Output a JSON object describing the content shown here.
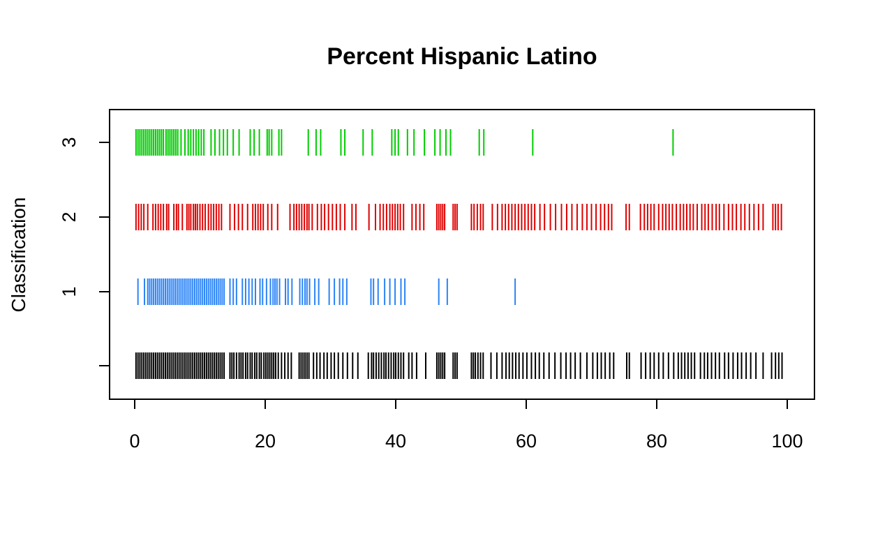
{
  "chart_data": {
    "type": "strip",
    "title": "Percent Hispanic Latino",
    "xlabel": "",
    "ylabel": "Classification",
    "xlim": [
      0,
      100
    ],
    "x_ticks": [
      "0",
      "20",
      "40",
      "60",
      "80",
      "100"
    ],
    "x_tick_values": [
      0,
      20,
      40,
      60,
      80,
      100
    ],
    "y_ticks": [
      "",
      "1",
      "2",
      "3"
    ],
    "grid": false,
    "legend": "none",
    "series": [
      {
        "row": "all",
        "color": "#000000",
        "x": [
          0.2,
          0.5,
          0.8,
          1.1,
          1.4,
          1.7,
          2.0,
          2.3,
          2.6,
          2.9,
          3.2,
          3.5,
          3.8,
          4.1,
          4.4,
          4.7,
          5.0,
          5.3,
          5.6,
          5.9,
          6.2,
          6.5,
          6.8,
          7.1,
          7.4,
          7.7,
          8.0,
          8.3,
          8.6,
          8.9,
          9.2,
          9.5,
          9.8,
          10.1,
          10.4,
          10.7,
          11.0,
          11.3,
          11.6,
          11.9,
          12.2,
          12.5,
          12.8,
          13.1,
          13.4,
          13.7,
          14.6,
          14.9,
          15.2,
          15.6,
          16.0,
          16.3,
          16.6,
          17.0,
          17.3,
          17.7,
          18.0,
          18.4,
          18.7,
          19.1,
          19.4,
          19.8,
          20.1,
          20.4,
          20.7,
          21.0,
          21.3,
          21.6,
          22.0,
          22.5,
          23.0,
          23.5,
          24.0,
          25.2,
          25.5,
          25.8,
          26.1,
          26.4,
          26.7,
          27.4,
          27.9,
          28.4,
          29.0,
          29.5,
          30.1,
          30.6,
          31.2,
          31.9,
          32.6,
          33.4,
          34.2,
          35.8,
          36.3,
          36.6,
          37.0,
          37.4,
          37.8,
          38.2,
          38.5,
          38.9,
          39.3,
          39.7,
          40.0,
          40.4,
          40.8,
          41.2,
          42.0,
          42.5,
          43.2,
          44.6,
          46.3,
          46.6,
          46.9,
          47.2,
          47.5,
          48.8,
          49.1,
          49.4,
          51.6,
          51.9,
          52.2,
          52.6,
          53.0,
          53.4,
          54.6,
          55.5,
          56.3,
          56.9,
          57.4,
          57.9,
          58.4,
          58.9,
          59.5,
          60.1,
          60.8,
          61.4,
          62.0,
          62.7,
          63.5,
          64.4,
          65.3,
          66.1,
          66.8,
          67.5,
          68.3,
          69.3,
          70.2,
          70.9,
          71.5,
          72.1,
          72.8,
          73.4,
          75.4,
          75.8,
          77.6,
          78.3,
          79.0,
          79.6,
          80.3,
          81.0,
          81.8,
          82.6,
          83.3,
          83.8,
          84.3,
          84.8,
          85.3,
          85.8,
          86.7,
          87.3,
          87.8,
          88.4,
          89.0,
          89.6,
          90.4,
          91.0,
          91.7,
          92.4,
          93.0,
          93.7,
          94.4,
          95.2,
          96.3,
          97.6,
          98.2,
          98.7,
          99.2
        ],
        "y": 0
      },
      {
        "row": "1",
        "color": "#2b83f6",
        "x": [
          0.5,
          1.5,
          2.0,
          2.3,
          2.6,
          2.9,
          3.2,
          3.5,
          3.8,
          4.1,
          4.4,
          4.7,
          5.0,
          5.3,
          5.6,
          5.9,
          6.2,
          6.5,
          6.8,
          7.1,
          7.4,
          7.7,
          8.0,
          8.3,
          8.6,
          8.9,
          9.2,
          9.5,
          9.8,
          10.1,
          10.4,
          10.7,
          11.0,
          11.3,
          11.6,
          11.9,
          12.2,
          12.5,
          12.8,
          13.1,
          13.4,
          13.7,
          14.6,
          15.1,
          15.6,
          16.5,
          17.0,
          17.5,
          18.0,
          18.5,
          19.2,
          19.6,
          20.2,
          20.8,
          21.2,
          21.5,
          21.8,
          22.2,
          23.1,
          23.5,
          24.1,
          25.3,
          25.7,
          26.1,
          26.4,
          26.8,
          27.6,
          28.2,
          29.8,
          30.6,
          31.4,
          31.9,
          32.5,
          36.2,
          36.6,
          37.3,
          38.3,
          39.1,
          39.9,
          40.8,
          41.4,
          46.6,
          47.9,
          58.3
        ],
        "y": 1
      },
      {
        "row": "2",
        "color": "#df0000",
        "x": [
          0.2,
          0.6,
          1.0,
          1.4,
          2.0,
          2.8,
          3.2,
          3.6,
          4.0,
          4.4,
          4.9,
          5.2,
          6.0,
          6.4,
          6.7,
          7.3,
          8.0,
          8.3,
          8.6,
          9.0,
          9.3,
          9.6,
          10.0,
          10.4,
          10.8,
          11.3,
          11.7,
          12.1,
          12.5,
          12.9,
          13.3,
          14.6,
          15.3,
          15.9,
          16.5,
          17.3,
          18.1,
          18.5,
          18.9,
          19.3,
          19.7,
          20.4,
          21.0,
          21.9,
          23.8,
          24.4,
          24.8,
          25.2,
          25.6,
          26.0,
          26.4,
          26.7,
          27.2,
          28.0,
          28.6,
          29.1,
          29.7,
          30.3,
          30.9,
          31.5,
          32.2,
          33.3,
          33.9,
          35.9,
          36.9,
          37.6,
          38.1,
          38.6,
          39.1,
          39.5,
          39.9,
          40.3,
          40.7,
          41.2,
          42.5,
          43.1,
          43.7,
          44.3,
          46.3,
          46.6,
          46.9,
          47.2,
          47.5,
          48.8,
          49.1,
          49.4,
          51.6,
          52.0,
          52.5,
          53.0,
          53.4,
          54.8,
          55.6,
          56.3,
          56.8,
          57.3,
          57.8,
          58.3,
          58.8,
          59.3,
          59.8,
          60.3,
          60.8,
          61.3,
          62.1,
          62.8,
          63.7,
          64.5,
          65.4,
          66.2,
          67.0,
          67.8,
          68.6,
          69.3,
          70.0,
          70.7,
          71.4,
          72.0,
          72.6,
          73.1,
          75.3,
          75.8,
          77.5,
          78.1,
          78.6,
          79.1,
          79.6,
          80.3,
          80.9,
          81.4,
          81.9,
          82.4,
          83.0,
          83.6,
          84.1,
          84.6,
          85.1,
          85.6,
          86.2,
          86.9,
          87.4,
          87.9,
          88.5,
          89.1,
          89.6,
          90.3,
          91.0,
          91.6,
          92.2,
          92.9,
          93.5,
          94.2,
          94.9,
          95.6,
          96.3,
          97.8,
          98.2,
          98.6,
          99.1
        ],
        "y": 2
      },
      {
        "row": "3",
        "color": "#00cd00",
        "x": [
          0.2,
          0.5,
          0.8,
          1.1,
          1.4,
          1.7,
          2.0,
          2.3,
          2.6,
          2.9,
          3.2,
          3.5,
          3.8,
          4.1,
          4.4,
          4.8,
          5.1,
          5.4,
          5.7,
          6.0,
          6.3,
          6.6,
          7.1,
          7.7,
          8.2,
          8.6,
          9.0,
          9.4,
          9.8,
          10.2,
          10.6,
          11.7,
          12.3,
          13.0,
          13.6,
          14.2,
          15.1,
          16.0,
          17.7,
          18.3,
          19.1,
          20.3,
          20.6,
          21.0,
          22.1,
          22.5,
          26.6,
          27.8,
          28.5,
          31.6,
          32.2,
          35.0,
          36.4,
          39.4,
          39.9,
          40.4,
          41.8,
          42.8,
          44.4,
          46.0,
          46.8,
          47.7,
          48.4,
          52.8,
          53.5,
          61.0,
          82.5
        ],
        "y": 3
      }
    ]
  }
}
